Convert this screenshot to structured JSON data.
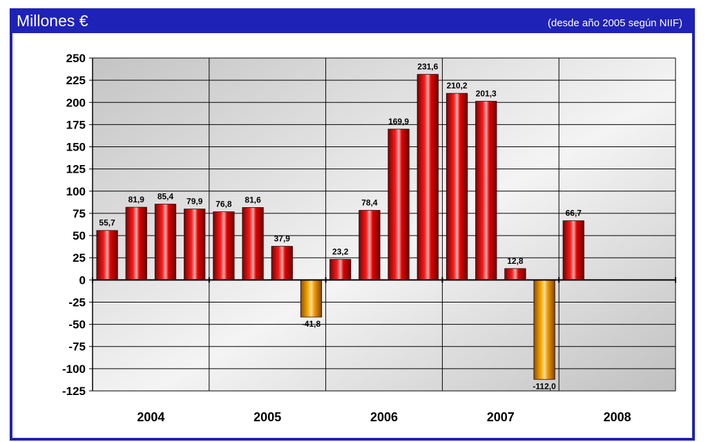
{
  "header": {
    "title": "Millones €",
    "subtitle": "(desde año 2005 según NIIF)"
  },
  "colors": {
    "header_bg": "#1f22b6",
    "positive_bar": "#d40000",
    "negative_bar": "#f0a000"
  },
  "chart_data": {
    "type": "bar",
    "title": "",
    "xlabel": "",
    "ylabel": "",
    "ylim": [
      -125,
      250
    ],
    "ytick_step": 25,
    "grid": true,
    "groups": [
      "2004",
      "2005",
      "2006",
      "2007",
      "2008"
    ],
    "bars_per_group": 4,
    "values": [
      55.7,
      81.9,
      85.4,
      79.9,
      76.8,
      81.6,
      37.9,
      -41.8,
      23.2,
      78.4,
      169.9,
      231.6,
      210.2,
      201.3,
      12.8,
      -112.0,
      66.7
    ],
    "labels": [
      "55,7",
      "81,9",
      "85,4",
      "79,9",
      "76,8",
      "81,6",
      "37,9",
      "-41,8",
      "23,2",
      "78,4",
      "169,9",
      "231,6",
      "210,2",
      "201,3",
      "12,8",
      "-112,0",
      "66,7"
    ]
  }
}
